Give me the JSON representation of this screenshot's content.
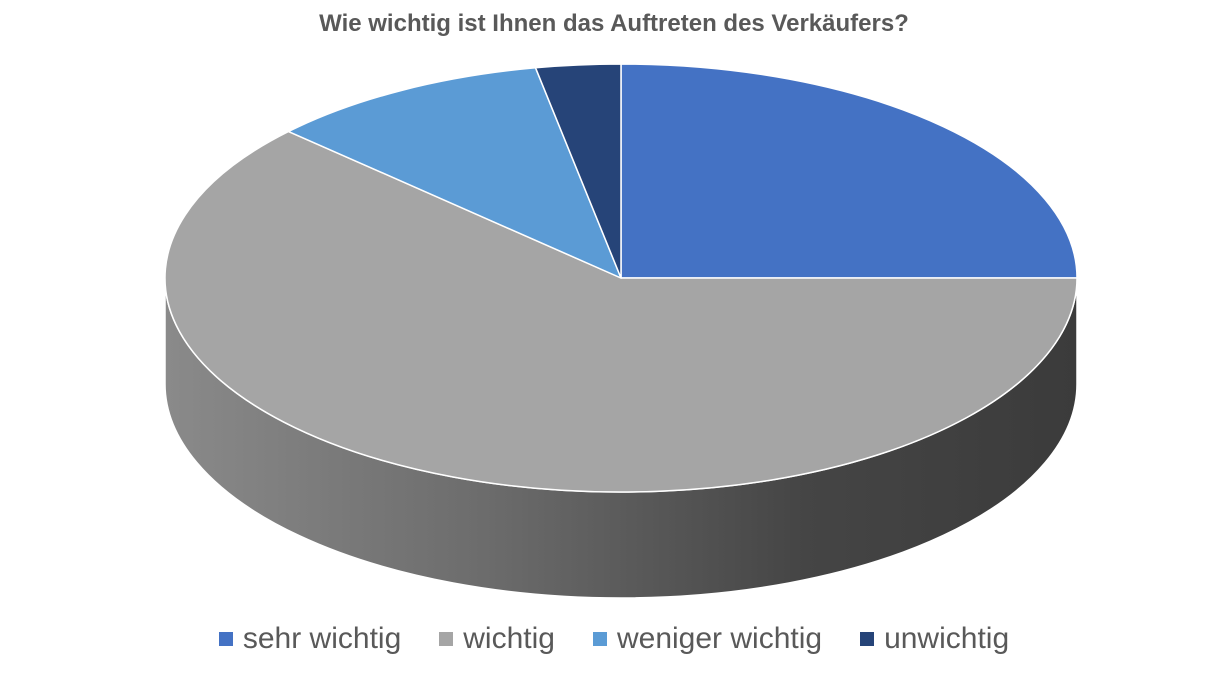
{
  "chart_data": {
    "type": "pie",
    "title": "Wie wichtig ist Ihnen das Auftreten des Verkäufers?",
    "style": "3d",
    "legend_position": "bottom",
    "categories": [
      "sehr wichtig",
      "wichtig",
      "weniger wichtig",
      "unwichtig"
    ],
    "values": [
      25,
      62,
      10,
      3
    ],
    "colors": [
      "#4472C4",
      "#A5A5A5",
      "#5B9BD5",
      "#264478"
    ]
  }
}
